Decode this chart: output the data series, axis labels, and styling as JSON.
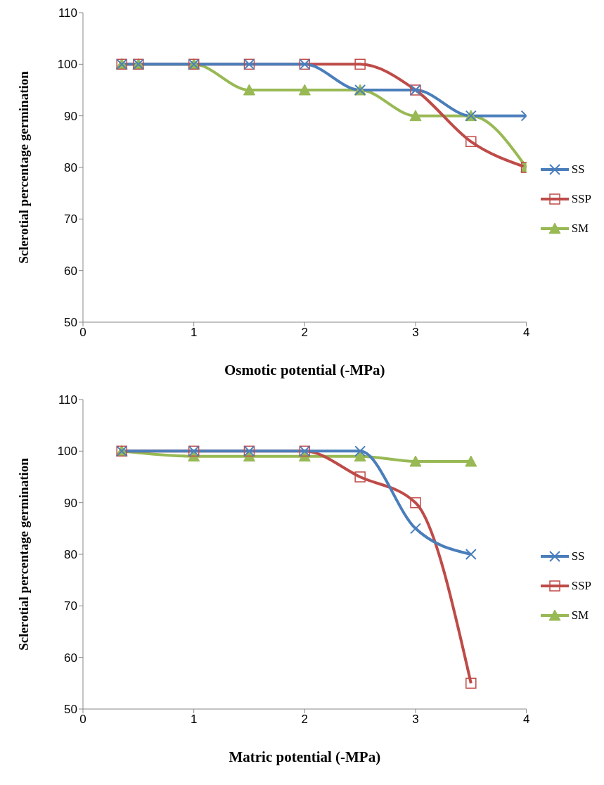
{
  "chart_data": [
    {
      "type": "line",
      "xlabel": "Osmotic potential (-MPa)",
      "ylabel": "Sclerotial percentage germination",
      "x": [
        0.35,
        0.5,
        1,
        1.5,
        2,
        2.5,
        3,
        3.5,
        4
      ],
      "xlim": [
        0,
        4
      ],
      "xticks": [
        0,
        1,
        2,
        3,
        4
      ],
      "ylim": [
        50,
        110
      ],
      "yticks": [
        50,
        60,
        70,
        80,
        90,
        100,
        110
      ],
      "grid": false,
      "legend": "right",
      "line_style": "solid",
      "series": [
        {
          "name": "SS",
          "color": "#4a7ebb",
          "marker": "cross",
          "values": [
            100,
            100,
            100,
            100,
            100,
            95,
            95,
            90,
            90
          ]
        },
        {
          "name": "SSP",
          "color": "#be4b48",
          "marker": "square",
          "values": [
            100,
            100,
            100,
            100,
            100,
            100,
            95,
            85,
            80
          ]
        },
        {
          "name": "SM",
          "color": "#98b954",
          "marker": "triangle",
          "values": [
            100,
            100,
            100,
            95,
            95,
            95,
            90,
            90,
            80
          ]
        }
      ]
    },
    {
      "type": "line",
      "xlabel": "Matric potential (-MPa)",
      "ylabel": "Sclerotial percentage germination",
      "x": [
        0.35,
        1,
        1.5,
        2,
        2.5,
        3,
        3.5
      ],
      "xlim": [
        0,
        4
      ],
      "xticks": [
        0,
        1,
        2,
        3,
        4
      ],
      "ylim": [
        50,
        110
      ],
      "yticks": [
        50,
        60,
        70,
        80,
        90,
        100,
        110
      ],
      "grid": false,
      "legend": "right",
      "line_style": "solid",
      "series": [
        {
          "name": "SS",
          "color": "#4a7ebb",
          "marker": "cross",
          "values": [
            100,
            100,
            100,
            100,
            100,
            85,
            80
          ]
        },
        {
          "name": "SSP",
          "color": "#be4b48",
          "marker": "square",
          "values": [
            100,
            100,
            100,
            100,
            95,
            90,
            55
          ]
        },
        {
          "name": "SM",
          "color": "#98b954",
          "marker": "triangle",
          "values": [
            100,
            99,
            99,
            99,
            99,
            98,
            98
          ]
        }
      ]
    }
  ]
}
